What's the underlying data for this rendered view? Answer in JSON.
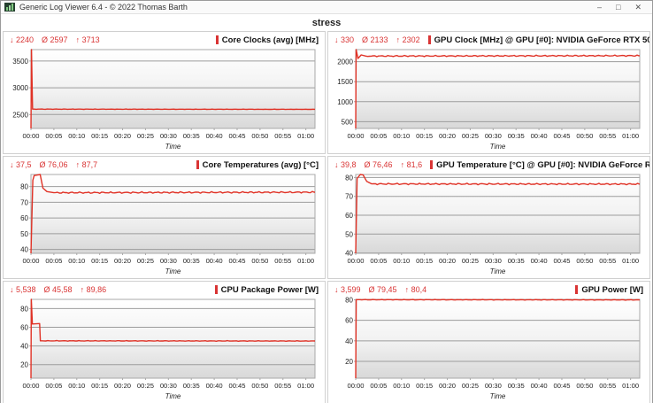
{
  "window": {
    "title": "Generic Log Viewer 6.4 - © 2022 Thomas Barth",
    "controls": {
      "minimize": "–",
      "maximize": "□",
      "close": "✕"
    }
  },
  "page_title": "stress",
  "colors": {
    "accent_red": "#d93434",
    "line_red": "#e03226",
    "grid_gray": "#9c9c9c",
    "plot_border": "#a8a8a8"
  },
  "time_axis": {
    "label": "Time",
    "tick_minutes": [
      0,
      5,
      10,
      15,
      20,
      25,
      30,
      35,
      40,
      45,
      50,
      55,
      60
    ],
    "tick_labels": [
      "00:00",
      "00:05",
      "00:10",
      "00:15",
      "00:20",
      "00:25",
      "00:30",
      "00:35",
      "00:40",
      "00:45",
      "00:50",
      "00:55",
      "01:00"
    ],
    "x_max_minutes": 62
  },
  "chart_data": [
    {
      "type": "line",
      "title": "Core Clocks (avg) [MHz]",
      "stats": {
        "min": "↓ 2240",
        "avg": "Ø 2597",
        "max": "↑ 3713"
      },
      "ylim": [
        2240,
        3713
      ],
      "yticks": [
        2500,
        3000,
        3500
      ],
      "points": [
        [
          0,
          2240
        ],
        [
          0.12,
          3713
        ],
        [
          0.35,
          2600
        ],
        [
          62,
          2597
        ]
      ],
      "noise": 3,
      "xlabel": "Time"
    },
    {
      "type": "line",
      "title": "GPU Clock [MHz] @ GPU [#0]: NVIDIA GeForce RTX 5060 Laptop",
      "stats": {
        "min": "↓ 330",
        "avg": "Ø 2133",
        "max": "↑ 2302"
      },
      "ylim": [
        330,
        2302
      ],
      "yticks": [
        500,
        1000,
        1500,
        2000
      ],
      "points": [
        [
          0,
          330
        ],
        [
          0.1,
          2302
        ],
        [
          0.5,
          2080
        ],
        [
          1.2,
          2170
        ],
        [
          2.2,
          2140
        ],
        [
          62,
          2150
        ]
      ],
      "noise": 16,
      "xlabel": "Time"
    },
    {
      "type": "line",
      "title": "Core Temperatures (avg) [°C]",
      "stats": {
        "min": "↓ 37,5",
        "avg": "Ø 76,06",
        "max": "↑ 87,7"
      },
      "ylim": [
        37.5,
        87.7
      ],
      "yticks": [
        40,
        50,
        60,
        70,
        80
      ],
      "points": [
        [
          0,
          37.5
        ],
        [
          0.4,
          84
        ],
        [
          0.7,
          87
        ],
        [
          2,
          87.7
        ],
        [
          2.6,
          79
        ],
        [
          3.5,
          76.8
        ],
        [
          5,
          76.1
        ],
        [
          62,
          76.4
        ]
      ],
      "noise": 0.5,
      "xlabel": "Time"
    },
    {
      "type": "line",
      "title": "GPU Temperature [°C] @ GPU [#0]: NVIDIA GeForce RTX 5060 Laptop",
      "stats": {
        "min": "↓ 39,8",
        "avg": "Ø 76,46",
        "max": "↑ 81,6"
      },
      "ylim": [
        39.8,
        81.6
      ],
      "yticks": [
        40,
        50,
        60,
        70,
        80
      ],
      "points": [
        [
          0,
          39.8
        ],
        [
          0.3,
          79.5
        ],
        [
          1,
          81.6
        ],
        [
          1.6,
          81.4
        ],
        [
          2.4,
          78
        ],
        [
          3.5,
          76.6
        ],
        [
          62,
          76.5
        ]
      ],
      "noise": 0.4,
      "xlabel": "Time"
    },
    {
      "type": "line",
      "title": "CPU Package Power [W]",
      "stats": {
        "min": "↓ 5,538",
        "avg": "Ø 45,58",
        "max": "↑ 89,86"
      },
      "ylim": [
        5.538,
        89.86
      ],
      "yticks": [
        20,
        40,
        60,
        80
      ],
      "points": [
        [
          0,
          5.538
        ],
        [
          0.08,
          89.86
        ],
        [
          0.3,
          63.5
        ],
        [
          1.9,
          64
        ],
        [
          2.05,
          45.5
        ],
        [
          62,
          45.3
        ]
      ],
      "noise": 0.3,
      "xlabel": "Time"
    },
    {
      "type": "line",
      "title": "GPU Power [W]",
      "stats": {
        "min": "↓ 3,599",
        "avg": "Ø 79,45",
        "max": "↑ 80,4"
      },
      "ylim": [
        3.599,
        80.4
      ],
      "yticks": [
        20,
        40,
        60,
        80
      ],
      "points": [
        [
          0,
          3.599
        ],
        [
          0.12,
          80.1
        ],
        [
          62,
          79.9
        ]
      ],
      "noise": 0.3,
      "xlabel": "Time"
    }
  ]
}
